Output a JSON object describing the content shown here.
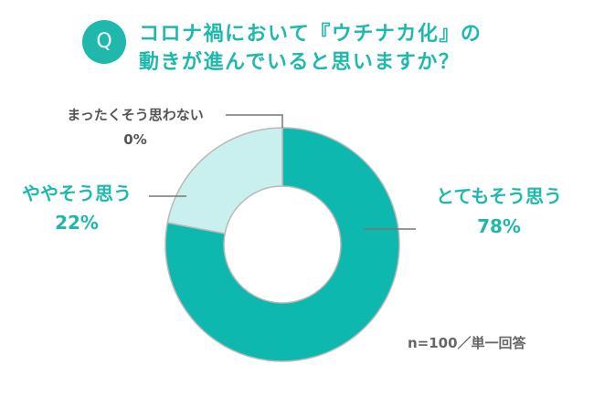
{
  "question": {
    "badge": "Q",
    "line1": "コロナ禍において『ウチナカ化』の",
    "line2": "動きが進んでいると思いますか？"
  },
  "chart_data": {
    "type": "pie",
    "donut": true,
    "categories": [
      "とてもそう思う",
      "ややそう思う",
      "まったくそう思わない"
    ],
    "values": [
      78,
      22,
      0
    ],
    "value_labels": [
      "78%",
      "22%",
      "0%"
    ],
    "colors": [
      "#0db8ae",
      "#c9f0ee",
      "#c9f0ee"
    ]
  },
  "note": "n=100／単一回答",
  "colors": {
    "accent": "#1fb8ac",
    "muted_text": "#555555"
  }
}
